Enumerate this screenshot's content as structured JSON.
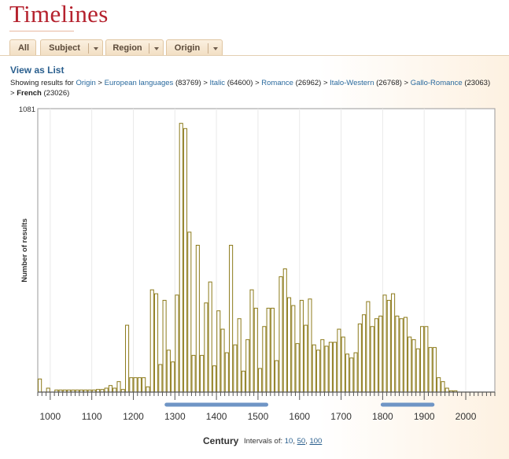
{
  "page": {
    "title": "Timelines"
  },
  "tabs": [
    {
      "label": "All",
      "dropdown": false
    },
    {
      "label": "Subject",
      "dropdown": true
    },
    {
      "label": "Region",
      "dropdown": true
    },
    {
      "label": "Origin",
      "dropdown": true
    }
  ],
  "view_as_list": "View as List",
  "breadcrumb": {
    "prefix": "Showing results for",
    "items": [
      {
        "label": "Origin",
        "count": "",
        "link": true
      },
      {
        "label": "European languages",
        "count": "(83769)",
        "link": true
      },
      {
        "label": "Italic",
        "count": "(64600)",
        "link": true
      },
      {
        "label": "Romance",
        "count": "(26962)",
        "link": true
      },
      {
        "label": "Italo-Western",
        "count": "(26768)",
        "link": true
      },
      {
        "label": "Gallo-Romance",
        "count": "(23063)",
        "link": true
      },
      {
        "label": "French",
        "count": "(23026)",
        "link": false
      }
    ]
  },
  "interval_control": {
    "label": "Intervals of:",
    "options": [
      "10",
      "50",
      "100"
    ],
    "active": "10"
  },
  "colors": {
    "bar_fill": "#ffffff",
    "bar_stroke": "#8c7a1a",
    "range_marker": "#6f95c5",
    "title": "#b5222e",
    "link": "#2a5f8e"
  },
  "chart_data": {
    "type": "bar",
    "title": "",
    "xlabel": "Century",
    "ylabel": "Number of results",
    "y_max_label": "1081",
    "ylim": [
      0,
      1081
    ],
    "xlim": [
      970,
      2070
    ],
    "x_ticks": [
      1000,
      1100,
      1200,
      1300,
      1400,
      1500,
      1600,
      1700,
      1800,
      1900,
      2000
    ],
    "bin_width": 10,
    "grid": true,
    "x": [
      970,
      980,
      990,
      1000,
      1010,
      1020,
      1030,
      1040,
      1050,
      1060,
      1070,
      1080,
      1090,
      1100,
      1110,
      1120,
      1130,
      1140,
      1150,
      1160,
      1170,
      1180,
      1190,
      1200,
      1210,
      1220,
      1230,
      1240,
      1250,
      1260,
      1270,
      1280,
      1290,
      1300,
      1310,
      1320,
      1330,
      1340,
      1350,
      1360,
      1370,
      1380,
      1390,
      1400,
      1410,
      1420,
      1430,
      1440,
      1450,
      1460,
      1470,
      1480,
      1490,
      1500,
      1510,
      1520,
      1530,
      1540,
      1550,
      1560,
      1570,
      1580,
      1590,
      1600,
      1610,
      1620,
      1630,
      1640,
      1650,
      1660,
      1670,
      1680,
      1690,
      1700,
      1710,
      1720,
      1730,
      1740,
      1750,
      1760,
      1770,
      1780,
      1790,
      1800,
      1810,
      1820,
      1830,
      1840,
      1850,
      1860,
      1870,
      1880,
      1890,
      1900,
      1910,
      1920,
      1930,
      1940,
      1950,
      1960,
      1970,
      1980,
      1990,
      2000,
      2010,
      2020,
      2030,
      2040,
      2050,
      2060
    ],
    "values": [
      50,
      0,
      15,
      0,
      8,
      8,
      8,
      8,
      8,
      8,
      8,
      8,
      8,
      8,
      10,
      10,
      15,
      25,
      15,
      40,
      10,
      255,
      55,
      55,
      55,
      55,
      20,
      390,
      375,
      105,
      350,
      160,
      115,
      370,
      1025,
      1005,
      610,
      140,
      560,
      140,
      340,
      420,
      100,
      310,
      240,
      150,
      560,
      180,
      280,
      80,
      200,
      390,
      320,
      90,
      250,
      320,
      320,
      120,
      440,
      470,
      360,
      330,
      185,
      350,
      255,
      355,
      180,
      160,
      200,
      175,
      190,
      190,
      240,
      210,
      145,
      130,
      150,
      260,
      295,
      345,
      250,
      280,
      290,
      370,
      350,
      375,
      290,
      280,
      285,
      210,
      200,
      165,
      250,
      250,
      170,
      170,
      55,
      40,
      15,
      5,
      5,
      0,
      0,
      0,
      0,
      0,
      0,
      0,
      0,
      0
    ],
    "range_markers": [
      {
        "from": 1280,
        "to": 1520
      },
      {
        "from": 1800,
        "to": 1920
      }
    ]
  }
}
